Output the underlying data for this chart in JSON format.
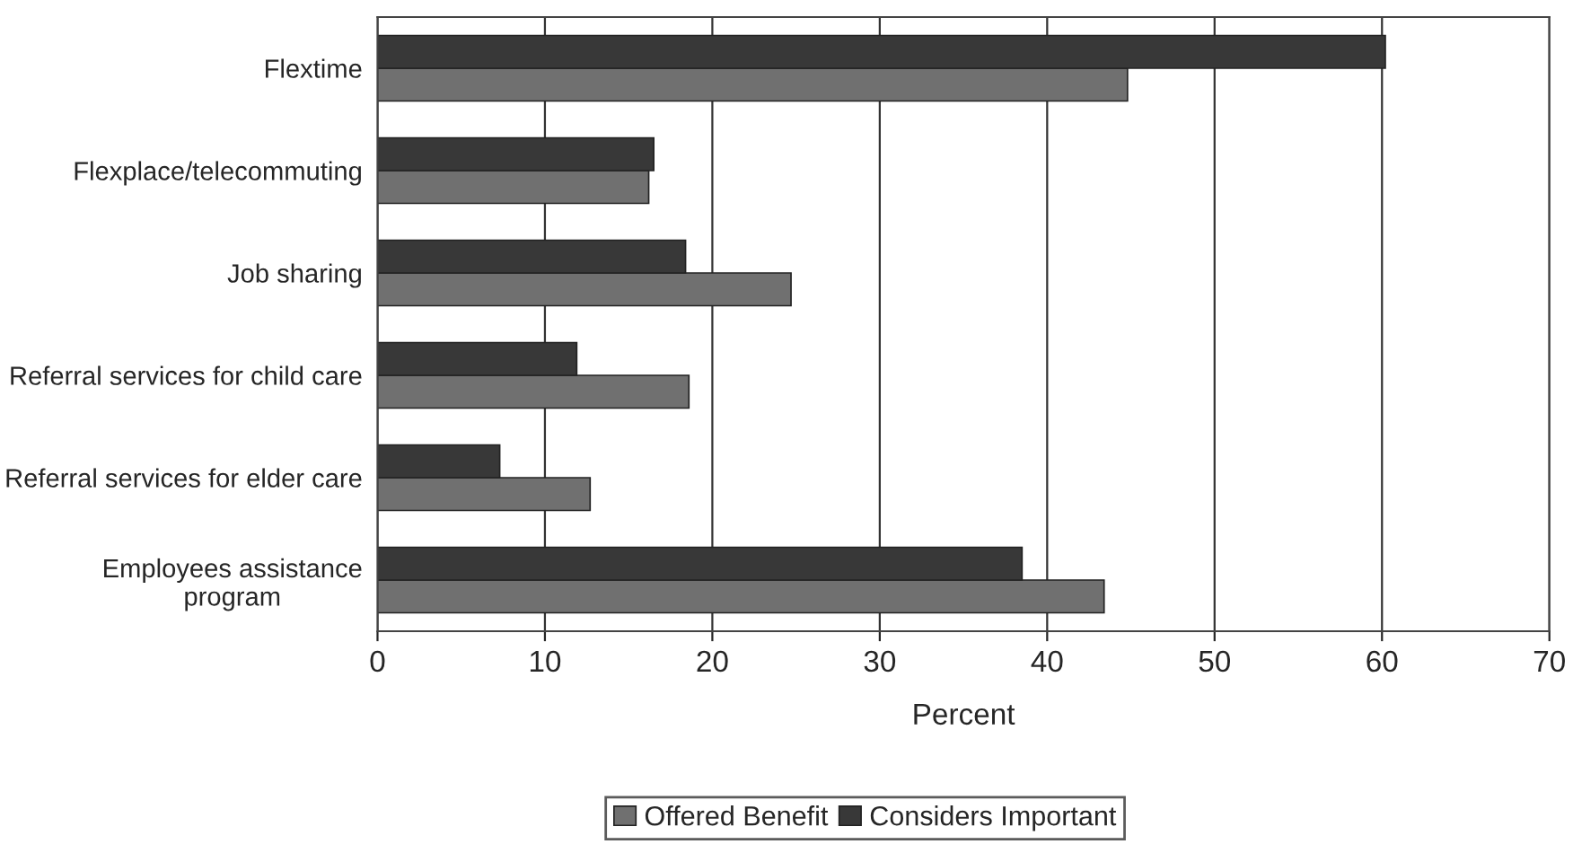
{
  "chart_data": {
    "type": "bar",
    "orientation": "horizontal",
    "xlabel": "Percent",
    "categories": [
      "Flextime",
      "Flexplace/telecommuting",
      "Job sharing",
      "Referral services for child care",
      "Referral services for elder care",
      "Employees assistance program"
    ],
    "series": [
      {
        "name": "Offered Benefit",
        "color": "#707070",
        "values": [
          44.8,
          16.2,
          24.7,
          18.6,
          12.7,
          43.4
        ]
      },
      {
        "name": "Considers Important",
        "color": "#383838",
        "values": [
          60.2,
          16.5,
          18.4,
          11.9,
          7.3,
          38.5
        ]
      }
    ],
    "xlim": [
      0,
      70
    ],
    "xticks": [
      0,
      10,
      20,
      30,
      40,
      50,
      60,
      70
    ],
    "grid": "x",
    "legend": "bottom"
  }
}
